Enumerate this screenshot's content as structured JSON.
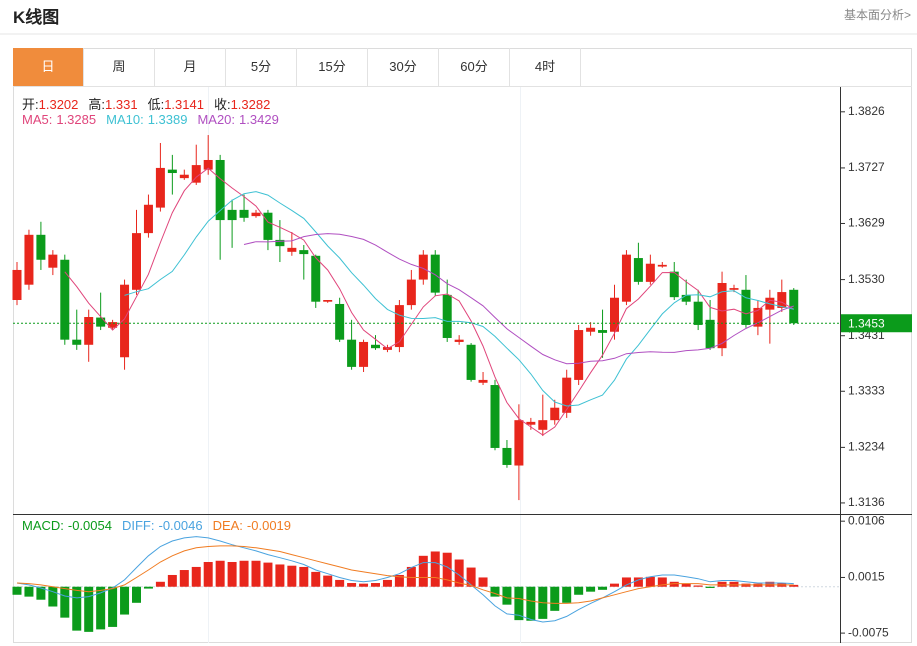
{
  "title": "K线图",
  "link": "基本面分析>",
  "tabs": [
    "日",
    "周",
    "月",
    "5分",
    "15分",
    "30分",
    "60分",
    "4时"
  ],
  "active_tab": 0,
  "chart_data": [
    {
      "type": "candlestick",
      "up_color": "#e8261c",
      "down_color": "#0b9b1b",
      "open": [
        1.3494,
        1.3521,
        1.3609,
        1.3551,
        1.3565,
        1.3424,
        1.3415,
        1.3463,
        1.3445,
        1.3393,
        1.3512,
        1.3612,
        1.3657,
        1.3724,
        1.3709,
        1.3701,
        1.3724,
        1.3741,
        1.3653,
        1.3653,
        1.3642,
        1.3648,
        1.36,
        1.3579,
        1.3582,
        1.3572,
        1.3491,
        1.3487,
        1.3424,
        1.3376,
        1.3415,
        1.3406,
        1.3411,
        1.3485,
        1.353,
        1.3574,
        1.3503,
        1.342,
        1.3415,
        1.3348,
        1.3344,
        1.3233,
        1.3202,
        1.3274,
        1.3265,
        1.3282,
        1.3295,
        1.3353,
        1.3438,
        1.3441,
        1.3438,
        1.3491,
        1.3568,
        1.3526,
        1.3553,
        1.3544,
        1.3503,
        1.3491,
        1.3459,
        1.3409,
        1.3512,
        1.3512,
        1.3447,
        1.3477,
        1.348,
        1.3512
      ],
      "high": [
        1.3561,
        1.3618,
        1.3632,
        1.3582,
        1.3574,
        1.3477,
        1.3477,
        1.3507,
        1.3459,
        1.353,
        1.3653,
        1.368,
        1.3771,
        1.375,
        1.3724,
        1.3768,
        1.3785,
        1.375,
        1.3671,
        1.368,
        1.3653,
        1.3653,
        1.3635,
        1.3614,
        1.3591,
        1.3574,
        1.3494,
        1.3498,
        1.3459,
        1.3424,
        1.3432,
        1.3415,
        1.3494,
        1.3547,
        1.3582,
        1.3582,
        1.353,
        1.3432,
        1.3418,
        1.3367,
        1.3353,
        1.3247,
        1.331,
        1.3286,
        1.3327,
        1.3318,
        1.3371,
        1.345,
        1.3455,
        1.3477,
        1.3521,
        1.3582,
        1.3595,
        1.3574,
        1.3561,
        1.3561,
        1.353,
        1.3512,
        1.3494,
        1.3544,
        1.3521,
        1.3538,
        1.3494,
        1.3512,
        1.353,
        1.3515
      ],
      "low": [
        1.3485,
        1.3512,
        1.3547,
        1.3538,
        1.3415,
        1.3406,
        1.3385,
        1.3441,
        1.3441,
        1.3371,
        1.3503,
        1.3604,
        1.365,
        1.368,
        1.3706,
        1.3697,
        1.3715,
        1.3565,
        1.3586,
        1.3632,
        1.3639,
        1.3582,
        1.3561,
        1.3572,
        1.353,
        1.348,
        1.3489,
        1.342,
        1.3371,
        1.3367,
        1.3406,
        1.3402,
        1.3402,
        1.3477,
        1.3521,
        1.3501,
        1.342,
        1.3415,
        1.335,
        1.3344,
        1.3229,
        1.3198,
        1.3141,
        1.3265,
        1.3254,
        1.3274,
        1.3286,
        1.3344,
        1.3431,
        1.3392,
        1.3424,
        1.3485,
        1.3521,
        1.3521,
        1.3551,
        1.3494,
        1.3485,
        1.3441,
        1.3406,
        1.3395,
        1.3508,
        1.3445,
        1.3432,
        1.3417,
        1.3473,
        1.345
      ],
      "close": [
        1.3547,
        1.3609,
        1.3565,
        1.3574,
        1.3424,
        1.3415,
        1.3464,
        1.3447,
        1.3455,
        1.3521,
        1.3612,
        1.3662,
        1.3727,
        1.3718,
        1.3715,
        1.3732,
        1.3741,
        1.3635,
        1.3635,
        1.3639,
        1.3648,
        1.36,
        1.3589,
        1.3586,
        1.3575,
        1.3491,
        1.3494,
        1.3424,
        1.3376,
        1.342,
        1.3409,
        1.3411,
        1.3485,
        1.353,
        1.3574,
        1.3507,
        1.3427,
        1.3424,
        1.3353,
        1.3353,
        1.3233,
        1.3203,
        1.3282,
        1.3279,
        1.3282,
        1.3304,
        1.3357,
        1.3441,
        1.3445,
        1.3436,
        1.3498,
        1.3574,
        1.3526,
        1.3558,
        1.3556,
        1.3499,
        1.3491,
        1.345,
        1.3409,
        1.3524,
        1.3515,
        1.345,
        1.348,
        1.3498,
        1.3508,
        1.3453
      ],
      "ylim": [
        1.312,
        1.3868
      ],
      "yticks": [
        1.3826,
        1.3727,
        1.3629,
        {
          "value": 1.353,
          "label": "1.3530"
        },
        1.3431,
        1.3333,
        1.3234,
        1.3136
      ],
      "last_price": 1.3453,
      "last_price_color": "#0b9b1b",
      "ohlc_legend": [
        {
          "label": "开:",
          "value": 1.3202
        },
        {
          "label": "高:",
          "value": 1.331
        },
        {
          "label": "低:",
          "value": 1.3141
        },
        {
          "label": "收:",
          "value": 1.3282
        }
      ],
      "ma": [
        {
          "name": "MA5:",
          "value": 1.3285,
          "color": "#e0457b"
        },
        {
          "name": "MA10:",
          "value": 1.3389,
          "color": "#3ec1d3"
        },
        {
          "name": "MA20:",
          "value": 1.3429,
          "color": "#b04fc1"
        }
      ]
    },
    {
      "type": "macd",
      "up_color": "#e8261c",
      "down_color": "#0b9b1b",
      "histogram": [
        -0.0013,
        -0.0016,
        -0.0021,
        -0.0032,
        -0.005,
        -0.0071,
        -0.0073,
        -0.0069,
        -0.0065,
        -0.0045,
        -0.0026,
        -0.0003,
        0.0008,
        0.0019,
        0.0027,
        0.0032,
        0.004,
        0.0042,
        0.004,
        0.0042,
        0.0042,
        0.0039,
        0.0036,
        0.0034,
        0.0032,
        0.0024,
        0.0018,
        0.0011,
        0.0006,
        0.0005,
        0.0006,
        0.0011,
        0.0019,
        0.0032,
        0.005,
        0.0057,
        0.0055,
        0.0044,
        0.0031,
        0.0015,
        -0.0016,
        -0.0029,
        -0.0054,
        -0.0055,
        -0.0052,
        -0.0039,
        -0.0026,
        -0.0013,
        -0.0008,
        -0.0005,
        0.0005,
        0.0015,
        0.0015,
        0.0016,
        0.0015,
        0.0008,
        0.0005,
        0.0002,
        -0.0002,
        0.0008,
        0.0008,
        0.0005,
        0.0005,
        0.0008,
        0.0006,
        0.0003
      ],
      "diff": [
        0.0006,
        0.0003,
        -0.0002,
        -0.0008,
        -0.0015,
        -0.0018,
        -0.0016,
        -0.001,
        -0.0002,
        0.0011,
        0.0031,
        0.005,
        0.0065,
        0.0074,
        0.0079,
        0.0081,
        0.0079,
        0.0074,
        0.0068,
        0.0063,
        0.0058,
        0.0052,
        0.0047,
        0.0042,
        0.0036,
        0.0027,
        0.0021,
        0.0015,
        0.001,
        0.0008,
        0.001,
        0.0015,
        0.0021,
        0.0031,
        0.0039,
        0.0039,
        0.0032,
        0.0019,
        0.0003,
        -0.0013,
        -0.0031,
        -0.0044,
        -0.0046,
        -0.0053,
        -0.0057,
        -0.0055,
        -0.0048,
        -0.0037,
        -0.0027,
        -0.0018,
        -0.0008,
        0.0003,
        0.0011,
        0.0016,
        0.0019,
        0.0019,
        0.0016,
        0.0013,
        0.0008,
        0.001,
        0.001,
        0.0008,
        0.0006,
        0.0006,
        0.0006,
        0.0005
      ],
      "dea": [
        0.0006,
        0.0005,
        0.0003,
        0,
        -0.0003,
        -0.0006,
        -0.0008,
        -0.0006,
        -0.0003,
        0.0003,
        0.0015,
        0.0027,
        0.004,
        0.005,
        0.0058,
        0.0063,
        0.0065,
        0.0066,
        0.0066,
        0.0065,
        0.0063,
        0.006,
        0.0057,
        0.0052,
        0.0047,
        0.0042,
        0.0037,
        0.0032,
        0.0027,
        0.0024,
        0.0021,
        0.0018,
        0.0016,
        0.0015,
        0.0015,
        0.0015,
        0.0011,
        0.0006,
        0.0002,
        -0.0005,
        -0.0011,
        -0.0018,
        -0.0019,
        -0.0023,
        -0.0026,
        -0.0027,
        -0.0027,
        -0.0026,
        -0.0023,
        -0.0018,
        -0.0013,
        -0.0008,
        -0.0003,
        0,
        0.0003,
        0.0005,
        0.0005,
        0.0005,
        0.0003,
        0.0003,
        0.0003,
        0.0003,
        0.0003,
        0.0003,
        0.0003,
        0.0003
      ],
      "diff_color": "#4aa3df",
      "dea_color": "#f07c22",
      "ylim": [
        -0.0091,
        0.0116
      ],
      "yticks": [
        0.0106,
        0.0015,
        -0.0075
      ],
      "legend": [
        {
          "name": "MACD:",
          "value": -0.0054,
          "color": "#0b9b1b"
        },
        {
          "name": "DIFF:",
          "value": -0.0046,
          "color": "#4aa3df"
        },
        {
          "name": "DEA:",
          "value": -0.0019,
          "color": "#f07c22"
        }
      ]
    }
  ]
}
